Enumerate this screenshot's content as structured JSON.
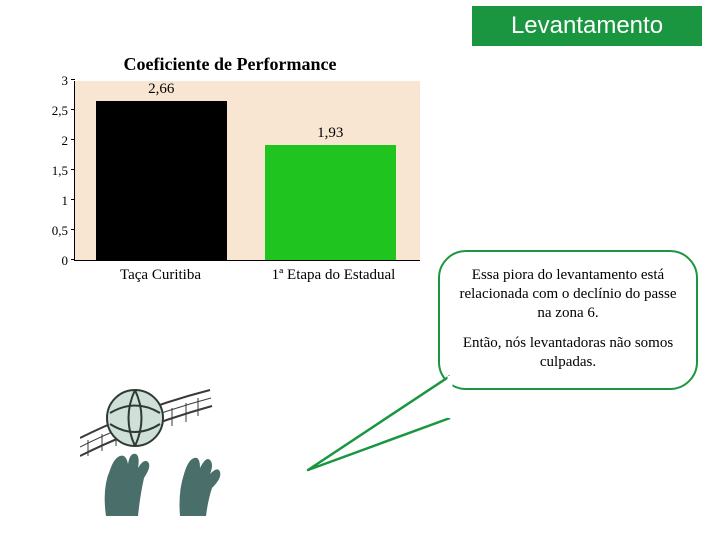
{
  "header": {
    "title": "Levantamento",
    "bg_color": "#1a9641",
    "text_color": "#ffffff",
    "font_size": 24
  },
  "chart": {
    "type": "bar",
    "title": "Coeficiente de Performance",
    "title_fontsize": 18,
    "title_weight": "bold",
    "background_color": "#f9e6d2",
    "axis_color": "#000000",
    "ylim": [
      0,
      3
    ],
    "yticks": [
      0,
      0.5,
      1,
      1.5,
      2,
      2.5,
      3
    ],
    "ytick_labels": [
      "0",
      "0,5",
      "1",
      "1,5",
      "2",
      "2,5",
      "3"
    ],
    "tick_fontsize": 13,
    "categories": [
      "Taça Curitiba",
      "1ª Etapa do Estadual"
    ],
    "category_fontsize": 15,
    "values": [
      2.66,
      1.93
    ],
    "value_labels": [
      "2,66",
      "1,93"
    ],
    "value_label_fontsize": 15,
    "bar_colors": [
      "#000000",
      "#1fc41f"
    ],
    "bar_width_pct": 38,
    "bar_left_pct": [
      6,
      55
    ]
  },
  "bubble": {
    "border_color": "#1a9641",
    "border_width": 2.5,
    "border_radius": 28,
    "bg_color": "#ffffff",
    "font_size": 15,
    "paragraph1": "Essa piora do levantamento está relacionada com o declínio do passe na zona 6.",
    "paragraph2": "Então, nós levantadoras não somos culpadas."
  },
  "illustration": {
    "name": "volleyball-set-icon",
    "ball_color": "#cfe0d8",
    "ball_lines": "#2e3a33",
    "hands_color": "#4a6e6a",
    "net_color": "#3a3a3a"
  }
}
